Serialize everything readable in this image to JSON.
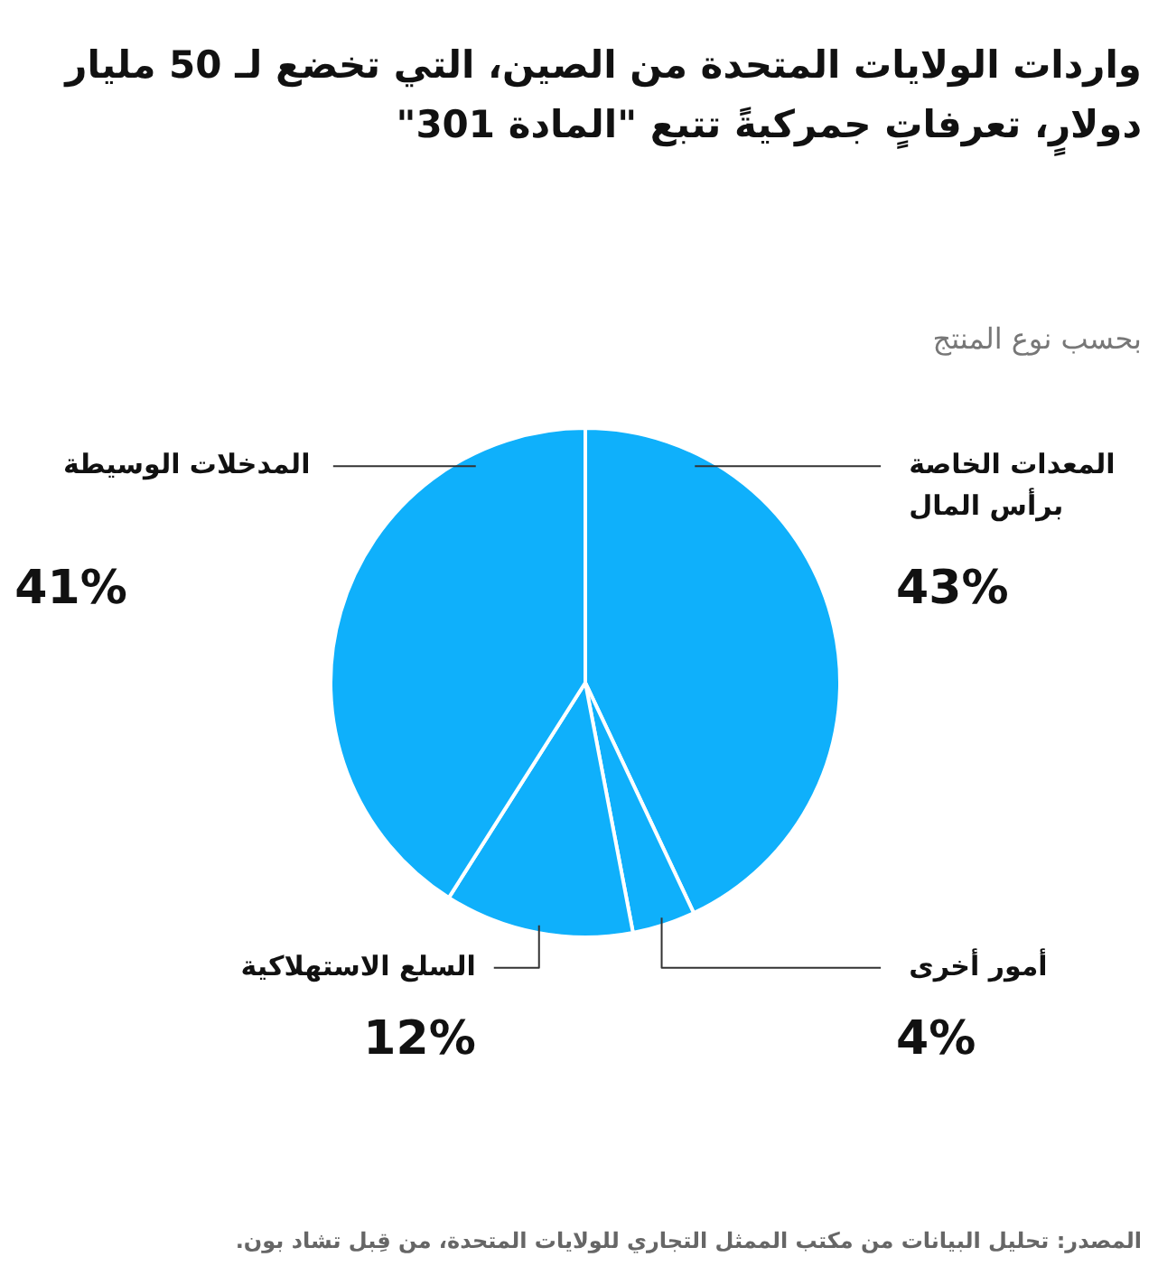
{
  "chart_data": {
    "type": "pie",
    "title": "واردات الولايات المتحدة من الصين، التي تخضع لـ 50 مليار دولارٍ، تعرفاتٍ جمركيةً تتبع \"المادة 301\"",
    "subtitle": "بحسب نوع المنتج",
    "categories": [
      "المعدات الخاصة برأس المال",
      "أمور أخرى",
      "السلع الاستهلاكية",
      "المدخلات الوسيطة"
    ],
    "values": [
      43,
      4,
      12,
      41
    ],
    "colors": [
      "#0fb0fb",
      "#0fb0fb",
      "#0fb0fb",
      "#0fb0fb"
    ],
    "value_labels": [
      "43%",
      "4%",
      "12%",
      "41%"
    ],
    "legend": false,
    "annotations": [
      "المصدر: تحليل البيانات من مكتب الممثل التجاري للولايات المتحدة، من قِبل تشاد بون."
    ]
  }
}
